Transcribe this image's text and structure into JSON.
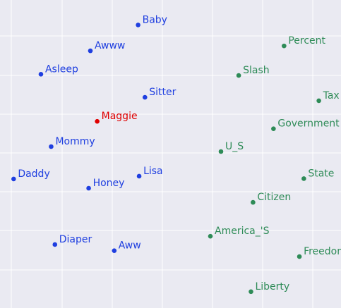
{
  "chart_data": {
    "type": "scatter",
    "grid": true,
    "legend": "none",
    "xlim": [
      0,
      100
    ],
    "ylim": [
      0,
      100
    ],
    "series": [
      {
        "color": "#1f3fe0",
        "points": [
          {
            "label": "Baby",
            "x": 40.5,
            "y": 91.9
          },
          {
            "label": "Awww",
            "x": 26.5,
            "y": 83.5
          },
          {
            "label": "Asleep",
            "x": 12.0,
            "y": 75.9
          },
          {
            "label": "Sitter",
            "x": 42.5,
            "y": 68.4
          },
          {
            "label": "Mommy",
            "x": 15.0,
            "y": 52.4
          },
          {
            "label": "Daddy",
            "x": 4.0,
            "y": 41.9
          },
          {
            "label": "Honey",
            "x": 26.0,
            "y": 38.9
          },
          {
            "label": "Lisa",
            "x": 40.8,
            "y": 42.8
          },
          {
            "label": "Diaper",
            "x": 16.1,
            "y": 20.6
          },
          {
            "label": "Aww",
            "x": 33.5,
            "y": 18.6
          }
        ]
      },
      {
        "color": "#e00000",
        "points": [
          {
            "label": "Maggie",
            "x": 28.5,
            "y": 60.6
          }
        ]
      },
      {
        "color": "#2e8b57",
        "points": [
          {
            "label": "Percent",
            "x": 83.3,
            "y": 85.1
          },
          {
            "label": "Slash",
            "x": 70.0,
            "y": 75.5
          },
          {
            "label": "Tax",
            "x": 93.5,
            "y": 67.3
          },
          {
            "label": "Government",
            "x": 80.2,
            "y": 58.2
          },
          {
            "label": "U_S",
            "x": 64.8,
            "y": 50.8
          },
          {
            "label": "State",
            "x": 89.1,
            "y": 42.0
          },
          {
            "label": "Citizen",
            "x": 74.2,
            "y": 34.3
          },
          {
            "label": "America_'S",
            "x": 61.7,
            "y": 23.3
          },
          {
            "label": "Freedom",
            "x": 87.8,
            "y": 16.7
          },
          {
            "label": "Liberty",
            "x": 73.6,
            "y": 5.3
          }
        ]
      }
    ]
  }
}
